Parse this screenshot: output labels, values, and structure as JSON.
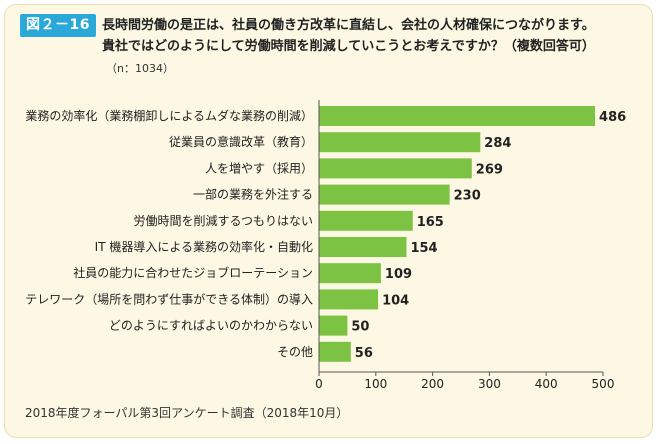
{
  "figure": {
    "badge": "図２－16",
    "title_line1": "長時間労働の是正は、社員の働き方改革に直結し、会社の人材確保につながります。",
    "title_line2": "貴社ではどのようにして労働時間を削減していこうとお考えですか？（複数回答可）",
    "sample": "（n：1034）",
    "source": "2018年度フォーパル第3回アンケート調査（2018年10月）"
  },
  "colors": {
    "bar": "#7cc243",
    "panel_bg": "#fdf8e3",
    "badge": "#2aa8d8"
  },
  "chart_data": {
    "type": "bar",
    "orientation": "horizontal",
    "title": "",
    "xlabel": "",
    "ylabel": "",
    "categories": [
      "業務の効率化（業務棚卸しによるムダな業務の削減）",
      "従業員の意識改革（教育）",
      "人を増やす（採用）",
      "一部の業務を外注する",
      "労働時間を削減するつもりはない",
      "IT 機器導入による業務の効率化・自動化",
      "社員の能力に合わせたジョブローテーション",
      "テレワーク（場所を問わず仕事ができる体制）の導入",
      "どのようにすればよいのかわからない",
      "その他"
    ],
    "values": [
      486,
      284,
      269,
      230,
      165,
      154,
      109,
      104,
      50,
      56
    ],
    "xlim": [
      0,
      500
    ],
    "xticks": [
      0,
      100,
      200,
      300,
      400,
      500
    ],
    "grid": false
  }
}
